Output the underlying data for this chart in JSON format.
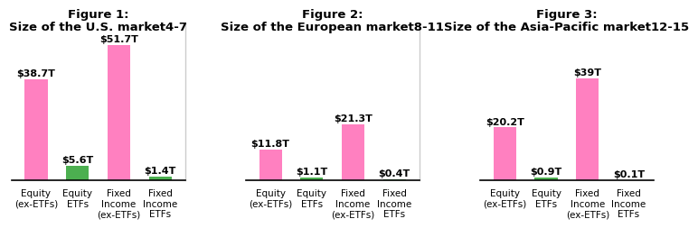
{
  "figures": [
    {
      "title_line1": "Figure 1:",
      "title_line2": "Size of the U.S. market",
      "title_superscript": "4-7",
      "values": [
        38.7,
        5.6,
        51.7,
        1.4
      ],
      "labels": [
        "$38.7T",
        "$5.6T",
        "$51.7T",
        "$1.4T"
      ],
      "colors": [
        "#ff80c0",
        "#4caf50",
        "#ff80c0",
        "#4caf50"
      ],
      "x_labels": [
        "Equity\n(ex-ETFs)",
        "Equity\nETFs",
        "Fixed\nIncome\n(ex-ETFs)",
        "Fixed\nIncome\nETFs"
      ]
    },
    {
      "title_line1": "Figure 2:",
      "title_line2": "Size of the European market",
      "title_superscript": "8-11",
      "values": [
        11.8,
        1.1,
        21.3,
        0.4
      ],
      "labels": [
        "$11.8T",
        "$1.1T",
        "$21.3T",
        "$0.4T"
      ],
      "colors": [
        "#ff80c0",
        "#4caf50",
        "#ff80c0",
        "#4caf50"
      ],
      "x_labels": [
        "Equity\n(ex-ETFs)",
        "Equity\nETFs",
        "Fixed\nIncome\n(ex-ETFs)",
        "Fixed\nIncome\nETFs"
      ]
    },
    {
      "title_line1": "Figure 3:",
      "title_line2": "Size of the Asia-Pacific market",
      "title_superscript": "12-15",
      "values": [
        20.2,
        0.9,
        39.0,
        0.1
      ],
      "labels": [
        "$20.2T",
        "$0.9T",
        "$39T",
        "$0.1T"
      ],
      "colors": [
        "#ff80c0",
        "#4caf50",
        "#ff80c0",
        "#4caf50"
      ],
      "x_labels": [
        "Equity\n(ex-ETFs)",
        "Equity\nETFs",
        "Fixed\nIncome\n(ex-ETFs)",
        "Fixed\nIncome\nETFs"
      ]
    }
  ],
  "background_color": "#ffffff",
  "bar_width": 0.55,
  "ylim": 60,
  "title_fontsize": 9.5,
  "label_fontsize": 8.5,
  "tick_fontsize": 7.5,
  "value_fontsize": 8.0,
  "divider_color": "#cccccc"
}
